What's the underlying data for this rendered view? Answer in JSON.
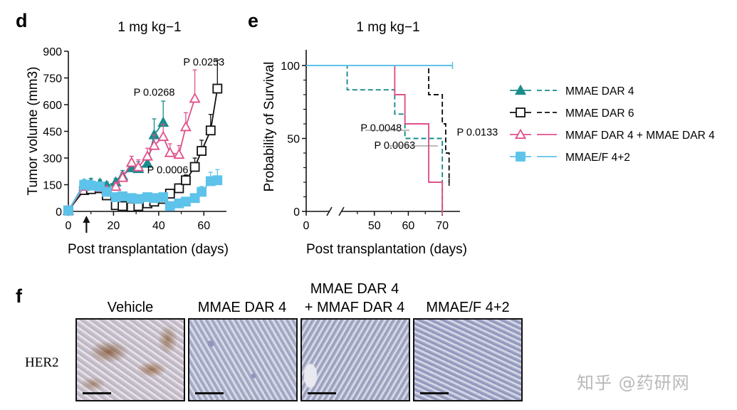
{
  "panels": {
    "d": "d",
    "e": "e",
    "f": "f"
  },
  "colors": {
    "teal": "#1a8c8c",
    "black": "#111111",
    "pink": "#e0508a",
    "lightblue": "#5ec3ea"
  },
  "chart_data": [
    {
      "id": "d",
      "type": "line",
      "title": "1 mg kg−1",
      "xlabel": "Post transplantation (days)",
      "ylabel": "Tumor volume (mm3)",
      "xlim": [
        0,
        70
      ],
      "ylim": [
        0,
        900
      ],
      "xticks": [
        "0",
        "20",
        "40",
        "60"
      ],
      "yticks": [
        "0",
        "150",
        "300",
        "450",
        "600",
        "750",
        "900"
      ],
      "arrow_day": 8,
      "series": [
        {
          "name": "MMAE DAR 4",
          "color": "#1a8c8c",
          "marker": "triangle-filled",
          "x": [
            0,
            7,
            10,
            14,
            17,
            21,
            24,
            28,
            31,
            35,
            38,
            42
          ],
          "y": [
            5,
            155,
            160,
            158,
            145,
            165,
            200,
            245,
            240,
            270,
            430,
            500
          ],
          "err": [
            5,
            20,
            25,
            20,
            20,
            20,
            30,
            40,
            40,
            45,
            90,
            120
          ]
        },
        {
          "name": "MMAE DAR 6",
          "color": "#111111",
          "marker": "square-open",
          "x": [
            0,
            7,
            10,
            14,
            17,
            21,
            24,
            28,
            31,
            35,
            38,
            42,
            45,
            49,
            52,
            56,
            59,
            63,
            66
          ],
          "y": [
            5,
            120,
            125,
            130,
            90,
            35,
            30,
            25,
            30,
            45,
            55,
            70,
            100,
            130,
            175,
            250,
            340,
            455,
            690
          ],
          "err": [
            5,
            15,
            15,
            15,
            15,
            10,
            8,
            8,
            10,
            12,
            12,
            15,
            20,
            25,
            30,
            50,
            60,
            90,
            160
          ]
        },
        {
          "name": "MMAF DAR 4 + MMAE DAR 4",
          "color": "#e0508a",
          "marker": "triangle-open",
          "x": [
            0,
            7,
            10,
            14,
            17,
            21,
            24,
            28,
            31,
            35,
            38,
            42,
            45,
            49,
            52,
            56
          ],
          "y": [
            5,
            140,
            150,
            135,
            120,
            140,
            190,
            275,
            250,
            310,
            370,
            420,
            330,
            320,
            475,
            635
          ],
          "err": [
            5,
            20,
            20,
            20,
            15,
            20,
            30,
            35,
            40,
            45,
            60,
            70,
            50,
            50,
            80,
            160
          ]
        },
        {
          "name": "MMAE/F 4+2",
          "color": "#5ec3ea",
          "marker": "square-filled",
          "x": [
            0,
            7,
            10,
            14,
            17,
            21,
            24,
            28,
            31,
            35,
            38,
            42,
            45,
            49,
            52,
            56,
            59,
            63,
            66
          ],
          "y": [
            5,
            150,
            145,
            140,
            110,
            80,
            85,
            75,
            70,
            80,
            75,
            80,
            30,
            45,
            55,
            75,
            110,
            170,
            175
          ],
          "err": [
            5,
            30,
            30,
            25,
            20,
            20,
            20,
            15,
            15,
            15,
            15,
            15,
            10,
            10,
            15,
            20,
            30,
            50,
            60
          ]
        }
      ],
      "annotations": [
        {
          "text": "P 0.0268",
          "x": 38,
          "y": 650
        },
        {
          "text": "P 0.0253",
          "x": 60,
          "y": 820
        },
        {
          "text": "P 0.0006",
          "x": 44,
          "y": 215
        }
      ]
    },
    {
      "id": "e",
      "type": "line",
      "title": "1 mg kg−1",
      "xlabel": "Post transplantation (days)",
      "ylabel": "Probability of Survival",
      "xlim": [
        0,
        75
      ],
      "ylim": [
        0,
        100
      ],
      "xticks": [
        "0",
        "50",
        "60",
        "70"
      ],
      "yticks": [
        "0",
        "50",
        "100"
      ],
      "axis_break": true,
      "series": [
        {
          "name": "MMAE DAR 4",
          "color": "#1a8c8c",
          "style": "dashed",
          "steps": [
            [
              0,
              100
            ],
            [
              42,
              100
            ],
            [
              42,
              83.3
            ],
            [
              56,
              83.3
            ],
            [
              56,
              66.7
            ],
            [
              59,
              66.7
            ],
            [
              59,
              50
            ],
            [
              70,
              50
            ],
            [
              70,
              0
            ]
          ]
        },
        {
          "name": "MMAE DAR 6",
          "color": "#111111",
          "style": "dashed",
          "steps": [
            [
              0,
              100
            ],
            [
              66,
              100
            ],
            [
              66,
              80
            ],
            [
              70,
              80
            ],
            [
              70,
              60
            ],
            [
              71,
              60
            ],
            [
              71,
              40
            ],
            [
              72,
              40
            ],
            [
              72,
              20
            ]
          ]
        },
        {
          "name": "MMAF DAR 4 + MMAE DAR 4",
          "color": "#e0508a",
          "style": "solid",
          "steps": [
            [
              0,
              100
            ],
            [
              56,
              100
            ],
            [
              56,
              80
            ],
            [
              59,
              80
            ],
            [
              59,
              60
            ],
            [
              66,
              60
            ],
            [
              66,
              20
            ],
            [
              70,
              20
            ],
            [
              70,
              0
            ]
          ]
        },
        {
          "name": "MMAE/F 4+2",
          "color": "#5ec3ea",
          "style": "solid",
          "steps": [
            [
              0,
              100
            ],
            [
              73,
              100
            ]
          ]
        }
      ],
      "annotations": [
        {
          "text": "P 0.0048",
          "x": 52,
          "y": 55
        },
        {
          "text": "P 0.0063",
          "x": 56,
          "y": 43
        },
        {
          "text": "P 0.0133",
          "x": 73,
          "y": 52
        }
      ]
    }
  ],
  "legend": [
    {
      "label": "MMAE DAR 4",
      "color": "#1a8c8c",
      "marker": "triangle-filled",
      "style": "dashed"
    },
    {
      "label": "MMAE DAR 6",
      "color": "#111111",
      "marker": "square-open",
      "style": "dashed"
    },
    {
      "label": "MMAF DAR 4 + MMAE DAR 4",
      "color": "#e0508a",
      "marker": "triangle-open",
      "style": "solid"
    },
    {
      "label": "MMAE/F 4+2",
      "color": "#5ec3ea",
      "marker": "square-filled",
      "style": "solid"
    }
  ],
  "histology": {
    "stain_label": "HER2",
    "columns": [
      "Vehicle",
      "MMAE DAR 4",
      "MMAE DAR 4",
      "+ MMAF DAR 4",
      "MMAE/F 4+2"
    ]
  },
  "watermark": "知乎 @药研网"
}
